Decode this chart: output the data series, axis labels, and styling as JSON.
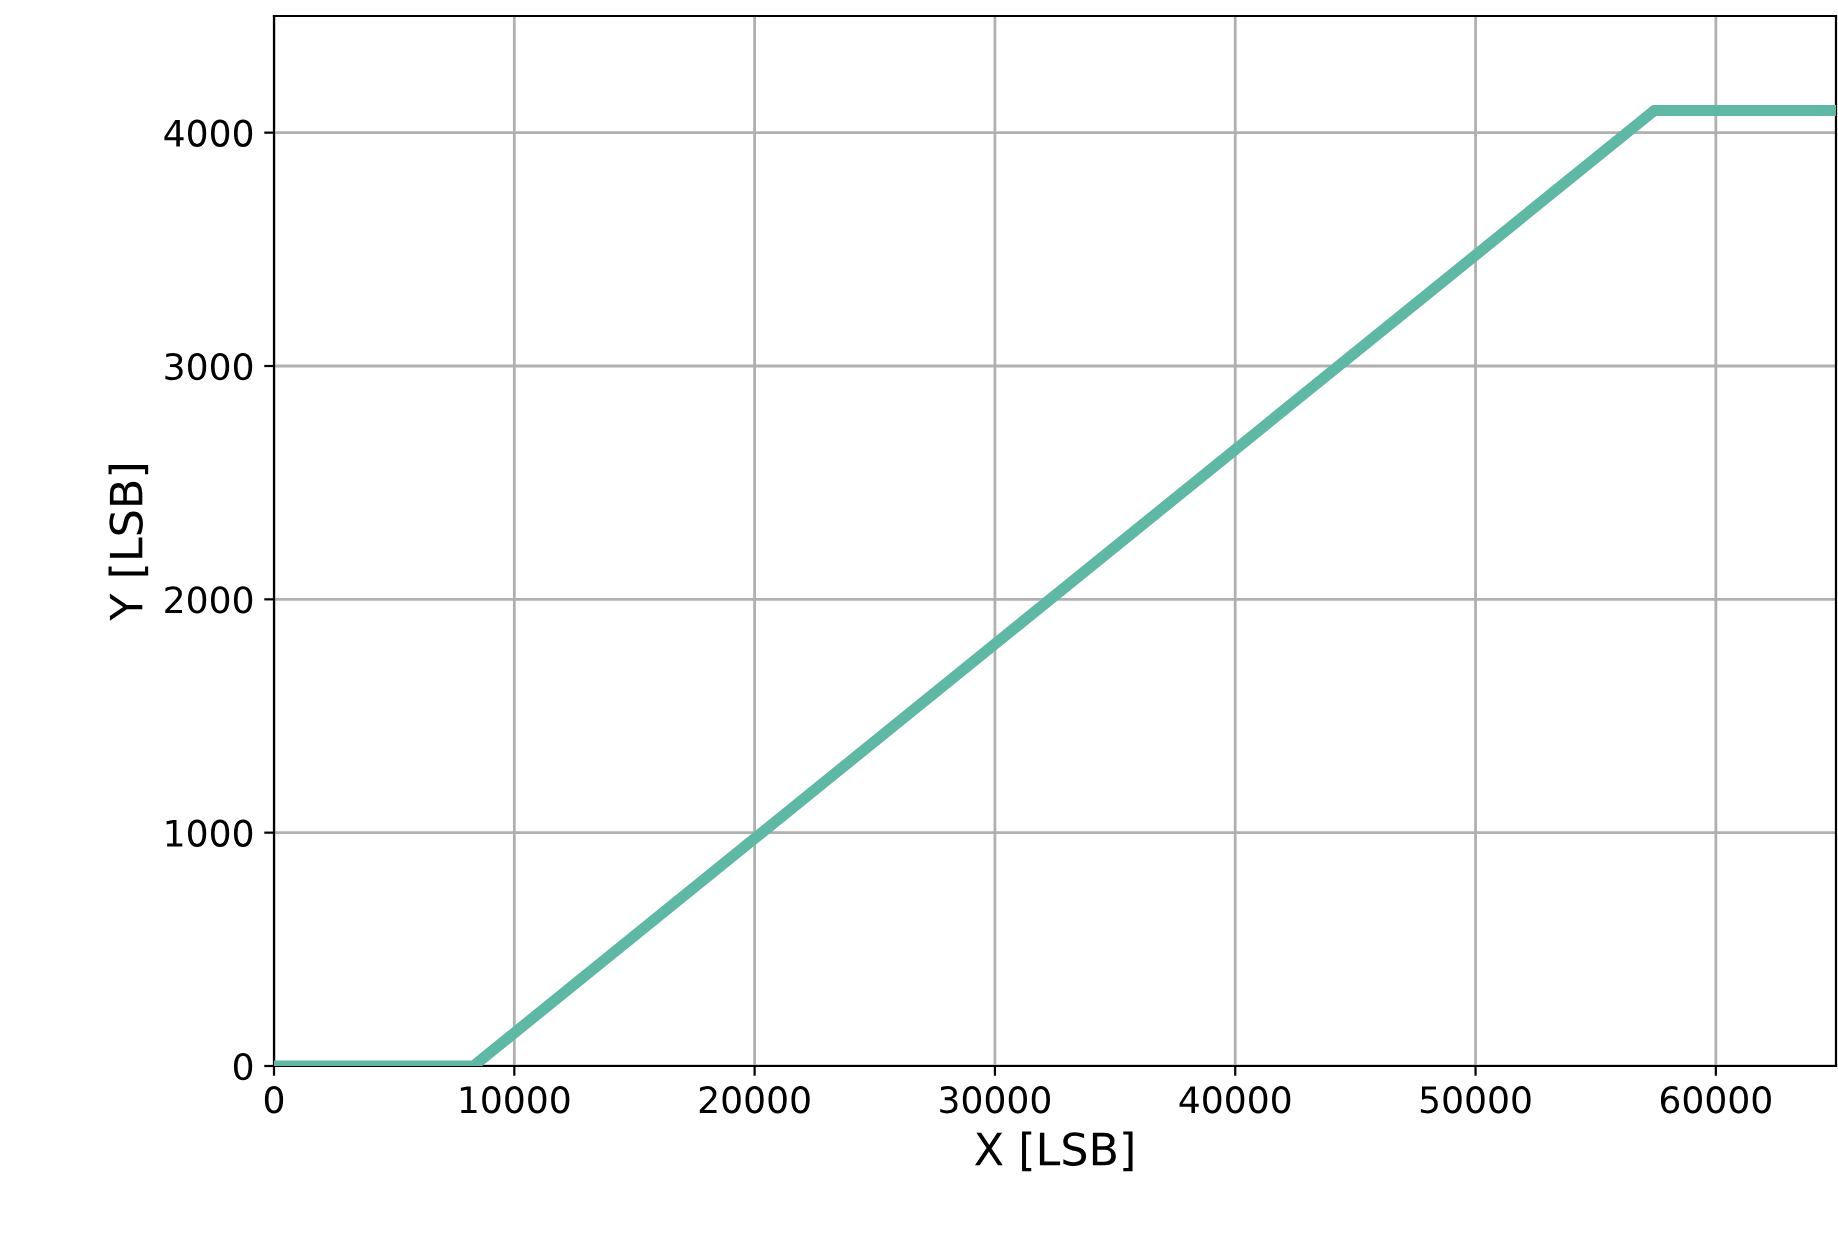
{
  "chart_data": {
    "type": "line",
    "xlabel": "X [LSB]",
    "ylabel": "Y [LSB]",
    "x": [
      0,
      8300,
      57440,
      65000
    ],
    "series": [
      {
        "color": "#5fb8a3",
        "values": [
          0,
          0,
          4095,
          4095
        ]
      }
    ],
    "xlim": [
      0,
      65000
    ],
    "ylim": [
      0,
      4500
    ],
    "xticks": [
      0,
      10000,
      20000,
      30000,
      40000,
      50000,
      60000
    ],
    "yticks": [
      0,
      1000,
      2000,
      3000,
      4000
    ],
    "grid": true,
    "marker": "none",
    "line_style": "solid"
  }
}
